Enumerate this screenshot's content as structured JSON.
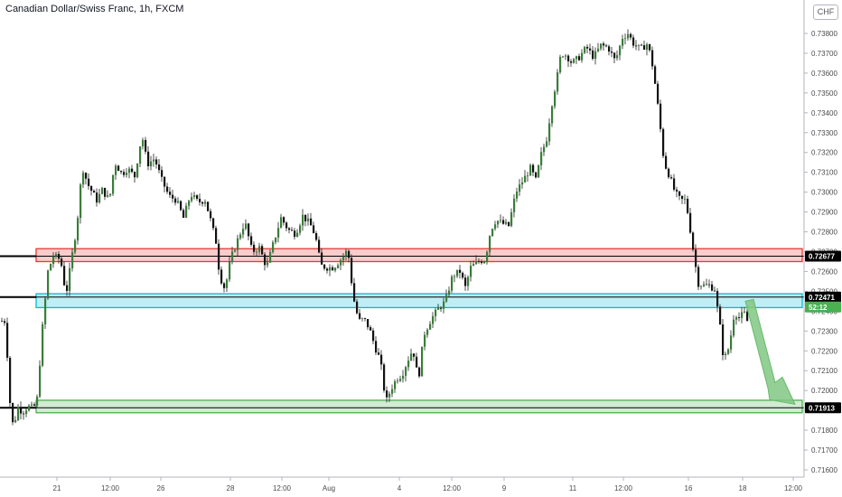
{
  "header": {
    "title": "Canadian Dollar/Swiss Franc, 1h, FXCM",
    "currency_badge": "CHF"
  },
  "chart_data": {
    "type": "candlestick",
    "title": "Canadian Dollar/Swiss Franc, 1h, FXCM",
    "ylim": [
      0.7156,
      0.7394
    ],
    "y_ticks": [
      "0.73800",
      "0.73700",
      "0.73600",
      "0.73500",
      "0.73400",
      "0.73300",
      "0.73200",
      "0.73100",
      "0.73000",
      "0.72900",
      "0.72800",
      "0.72700",
      "0.72600",
      "0.72500",
      "0.72400",
      "0.72300",
      "0.72200",
      "0.72100",
      "0.72000",
      "0.71900",
      "0.71800",
      "0.71700",
      "0.71600"
    ],
    "x_ticks": [
      "21",
      "12:00",
      "26",
      "28",
      "12:00",
      "Aug",
      "4",
      "12:00",
      "9",
      "11",
      "12:00",
      "16",
      "18",
      "12:00"
    ],
    "close_series": [
      0.7248,
      0.7215,
      0.7183,
      0.7195,
      0.7268,
      0.7247,
      0.7313,
      0.7292,
      0.7302,
      0.7319,
      0.7285,
      0.7287,
      0.7258,
      0.7269,
      0.7271,
      0.7261,
      0.7272,
      0.7278,
      0.7255,
      0.7243,
      0.7218,
      0.7199,
      0.7205,
      0.7232,
      0.7248,
      0.7267,
      0.7278,
      0.731,
      0.7373,
      0.7366,
      0.7363,
      0.7368,
      0.7372,
      0.7366,
      0.7259,
      0.7199,
      0.7246,
      0.7224,
      0.7234,
      0.7239
    ],
    "zones": [
      {
        "name": "resistance",
        "upper": 0.72715,
        "lower": 0.7265,
        "color": "#e53935"
      },
      {
        "name": "support",
        "upper": 0.72488,
        "lower": 0.72418,
        "color": "#00bcd4"
      },
      {
        "name": "target",
        "upper": 0.71951,
        "lower": 0.71888,
        "color": "#4caf50"
      }
    ],
    "price_labels": [
      {
        "text": "0.72677",
        "style": "dark"
      },
      {
        "text": "0.72471",
        "style": "dark"
      },
      {
        "text": "52:12",
        "style": "green"
      },
      {
        "text": "0.71913",
        "style": "dark"
      }
    ],
    "arrow": {
      "from_price": 0.7245,
      "to_price": 0.7194,
      "direction": "down",
      "color": "#81c784"
    }
  }
}
